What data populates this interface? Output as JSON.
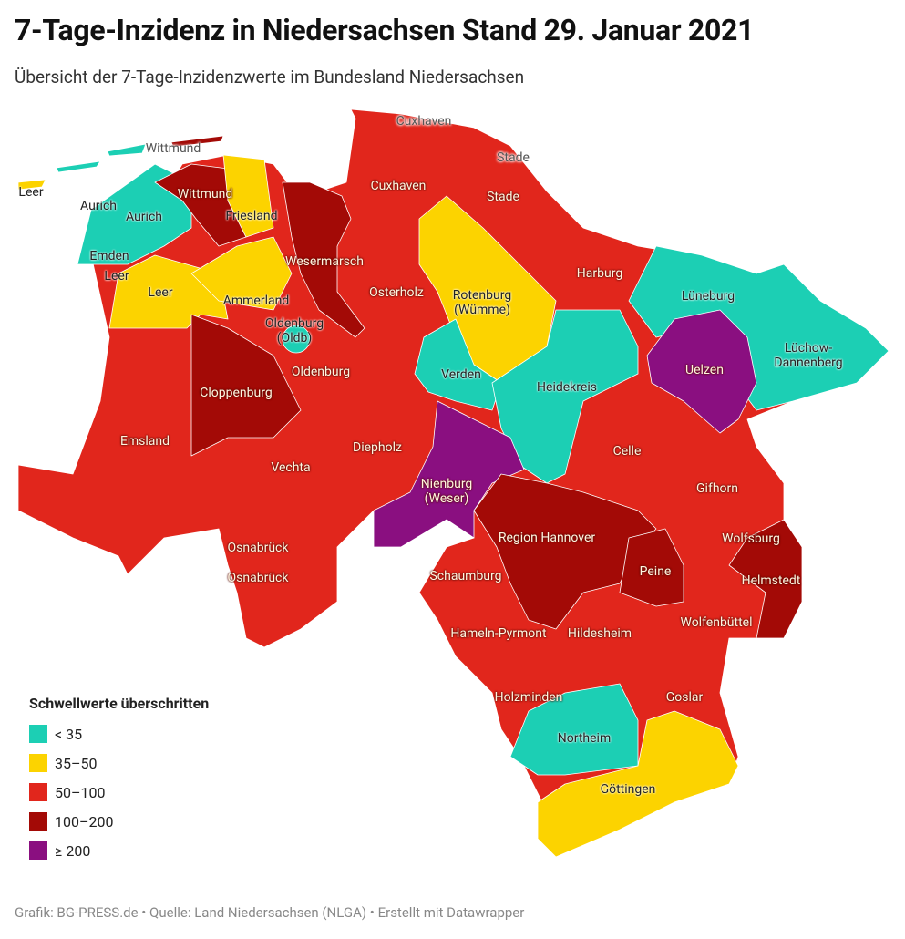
{
  "header": {
    "title": "7-Tage-Inzidenz in Niedersachsen Stand 29. Januar 2021",
    "subtitle": "Übersicht der 7-Tage-Inzidenzwerte im Bundesland Niedersachsen"
  },
  "map": {
    "labels": [
      "Cuxhaven",
      "Stade",
      "Wittmund",
      "Leer",
      "Aurich",
      "Aurich",
      "Wittmund",
      "Friesland",
      "Cuxhaven",
      "Stade",
      "Emden",
      "Leer",
      "Leer",
      "Wesermarsch",
      "Ammerland",
      "Oldenburg\n(Oldb)",
      "Osterholz",
      "Rotenburg\n(Wümme)",
      "Harburg",
      "Lüneburg",
      "Lüchow-Dannenberg",
      "Uelzen",
      "Verden",
      "Heidekreis",
      "Oldenburg",
      "Cloppenburg",
      "Emsland",
      "Diepholz",
      "Vechta",
      "Celle",
      "Nienburg\n(Weser)",
      "Gifhorn",
      "Region Hannover",
      "Wolfsburg",
      "Helmstedt",
      "Peine",
      "Osnabrück",
      "Osnabrück",
      "Schaumburg",
      "Hameln-Pyrmont",
      "Hildesheim",
      "Wolfenbüttel",
      "Holzminden",
      "Goslar",
      "Northeim",
      "Göttingen"
    ]
  },
  "legend": {
    "title": "Schwellwerte überschritten",
    "items": [
      {
        "label": "< 35",
        "color": "#1ccfb4"
      },
      {
        "label": "35–50",
        "color": "#fcd300"
      },
      {
        "label": "50–100",
        "color": "#e1261c"
      },
      {
        "label": "100–200",
        "color": "#a30a06"
      },
      {
        "label": "≥ 200",
        "color": "#8a0f80"
      }
    ]
  },
  "footer": "Grafik: BG-PRESS.de • Quelle: Land Niedersachsen (NLGA) • Erstellt mit Datawrapper"
}
